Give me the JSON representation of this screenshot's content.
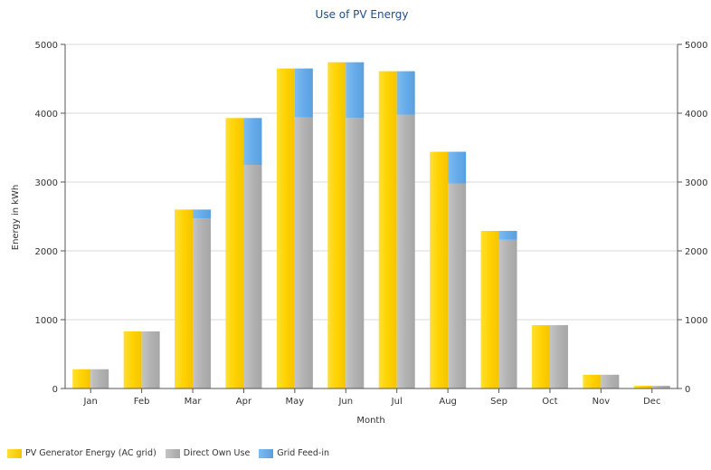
{
  "chart_data": {
    "type": "bar",
    "title": "Use of PV Energy",
    "xlabel": "Month",
    "ylabel": "Energy in kWh",
    "ylim": [
      0,
      5000
    ],
    "yticks": [
      0,
      1000,
      2000,
      3000,
      4000,
      5000
    ],
    "grid": true,
    "legend_position": "bottom-left",
    "categories": [
      "Jan",
      "Feb",
      "Mar",
      "Apr",
      "May",
      "Jun",
      "Jul",
      "Aug",
      "Sep",
      "Oct",
      "Nov",
      "Dec"
    ],
    "series": [
      {
        "name": "PV Generator Energy (AC grid)",
        "color": "#ffd700",
        "values": [
          280,
          830,
          2600,
          3930,
          4650,
          4740,
          4610,
          3440,
          2290,
          920,
          200,
          40
        ]
      },
      {
        "name": "Direct Own Use",
        "color": "#b4b4b4",
        "values": [
          280,
          830,
          2470,
          3250,
          3940,
          3930,
          3980,
          2980,
          2160,
          920,
          200,
          40
        ]
      },
      {
        "name": "Grid Feed-in",
        "color": "#6aaee8",
        "values": [
          0,
          0,
          130,
          680,
          710,
          810,
          630,
          460,
          130,
          0,
          0,
          0
        ]
      }
    ]
  }
}
